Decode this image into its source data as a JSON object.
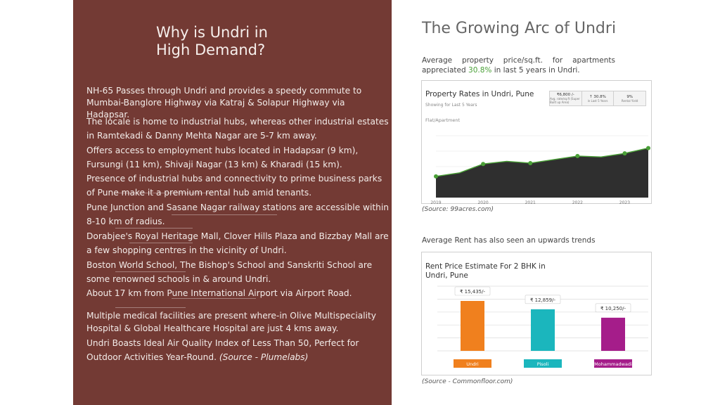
{
  "left": {
    "title_line1": "Why is Undri in",
    "title_line2": "High Demand?",
    "points": [
      "NH-65 Passes through Undri and provides a speedy commute to Mumbai-Banglore Highway via Katraj & Solapur Highway via Hadapsar.",
      "The locale is home to industrial hubs, whereas other industrial estates in Ramtekadi & Danny Mehta Nagar are 5-7 km away.",
      "Offers access to employment hubs located in Hadapsar (9 km), Fursungi (11 km), Shivaji Nagar (13 km) & Kharadi (15 km).",
      "Presence of industrial hubs and connectivity to prime business parks of Pune make it a premium rental hub amid tenants.",
      "Pune Junction and Sasane Nagar railway stations are accessible within 8-10 km of radius.",
      "Dorabjee's Royal Heritage Mall, Clover Hills Plaza and Bizzbay Mall are a few shopping centres in the vicinity of Undri.",
      "Boston World School, The Bishop's School and Sanskriti School are some renowned schools in & around Undri.",
      "About 17 km from Pune International Airport via Airport Road.",
      "Multiple medical facilities are present where-in Olive Multispeciality Hospital & Global Healthcare Hospital are just 4 kms away."
    ],
    "last_point": "Undri Boasts Ideal Air Quality Index of Less Than 50, Perfect for Outdoor Activities Year-Round.",
    "last_source": "(Source - Plumelabs)"
  },
  "right": {
    "title": "The Growing Arc of Undri",
    "intro_pre": "Average property price/sq.ft. for apartments appreciated ",
    "intro_pct": "30.8%",
    "intro_post": " in last 5 years in Undri.",
    "source1": "(Source: 99acres.com)",
    "rent_heading": "Average Rent has also seen an upwards trends",
    "source2": "(Source - Commonfloor.com)",
    "colors": {
      "green": "#4aa037",
      "area": "#2f2f2f"
    }
  },
  "property_chart": {
    "title": "Property Rates in Undri, Pune",
    "subtitle": "Showing for Last 5 Years",
    "category": "Flat/Apartment",
    "stats": [
      {
        "value": "₹6,800 /-",
        "label": "Avg. rate/sq.ft (Super Built up Area)"
      },
      {
        "value": "↑ 30.8%",
        "label": "in Last 5 Years"
      },
      {
        "value": "9%",
        "label": "Rental Yield"
      }
    ]
  },
  "chart_data": [
    {
      "type": "area",
      "title": "Property Rates in Undri, Pune",
      "x": [
        2019,
        2019.5,
        2020,
        2020.5,
        2021,
        2021.5,
        2022,
        2022.5,
        2023,
        2023.5
      ],
      "y": [
        5200,
        5400,
        5900,
        6050,
        5950,
        6150,
        6350,
        6300,
        6500,
        6800
      ],
      "xticks": [
        "2019",
        "2020",
        "2021",
        "2022",
        "2023"
      ],
      "ylim": [
        4000,
        7500
      ],
      "grid": true
    },
    {
      "type": "bar",
      "title": "Rent Price Estimate For 2 BHK in Undri, Pune",
      "categories": [
        "Undri",
        "Pisoli",
        "Mohammadwadi"
      ],
      "values": [
        15435,
        12859,
        10250
      ],
      "value_labels": [
        "₹ 15,435/-",
        "₹ 12,859/-",
        "₹ 10,250/-"
      ],
      "colors": [
        "#f0801e",
        "#1bb6bd",
        "#a51d8a"
      ],
      "ylim": [
        0,
        20000
      ],
      "grid": true
    }
  ]
}
